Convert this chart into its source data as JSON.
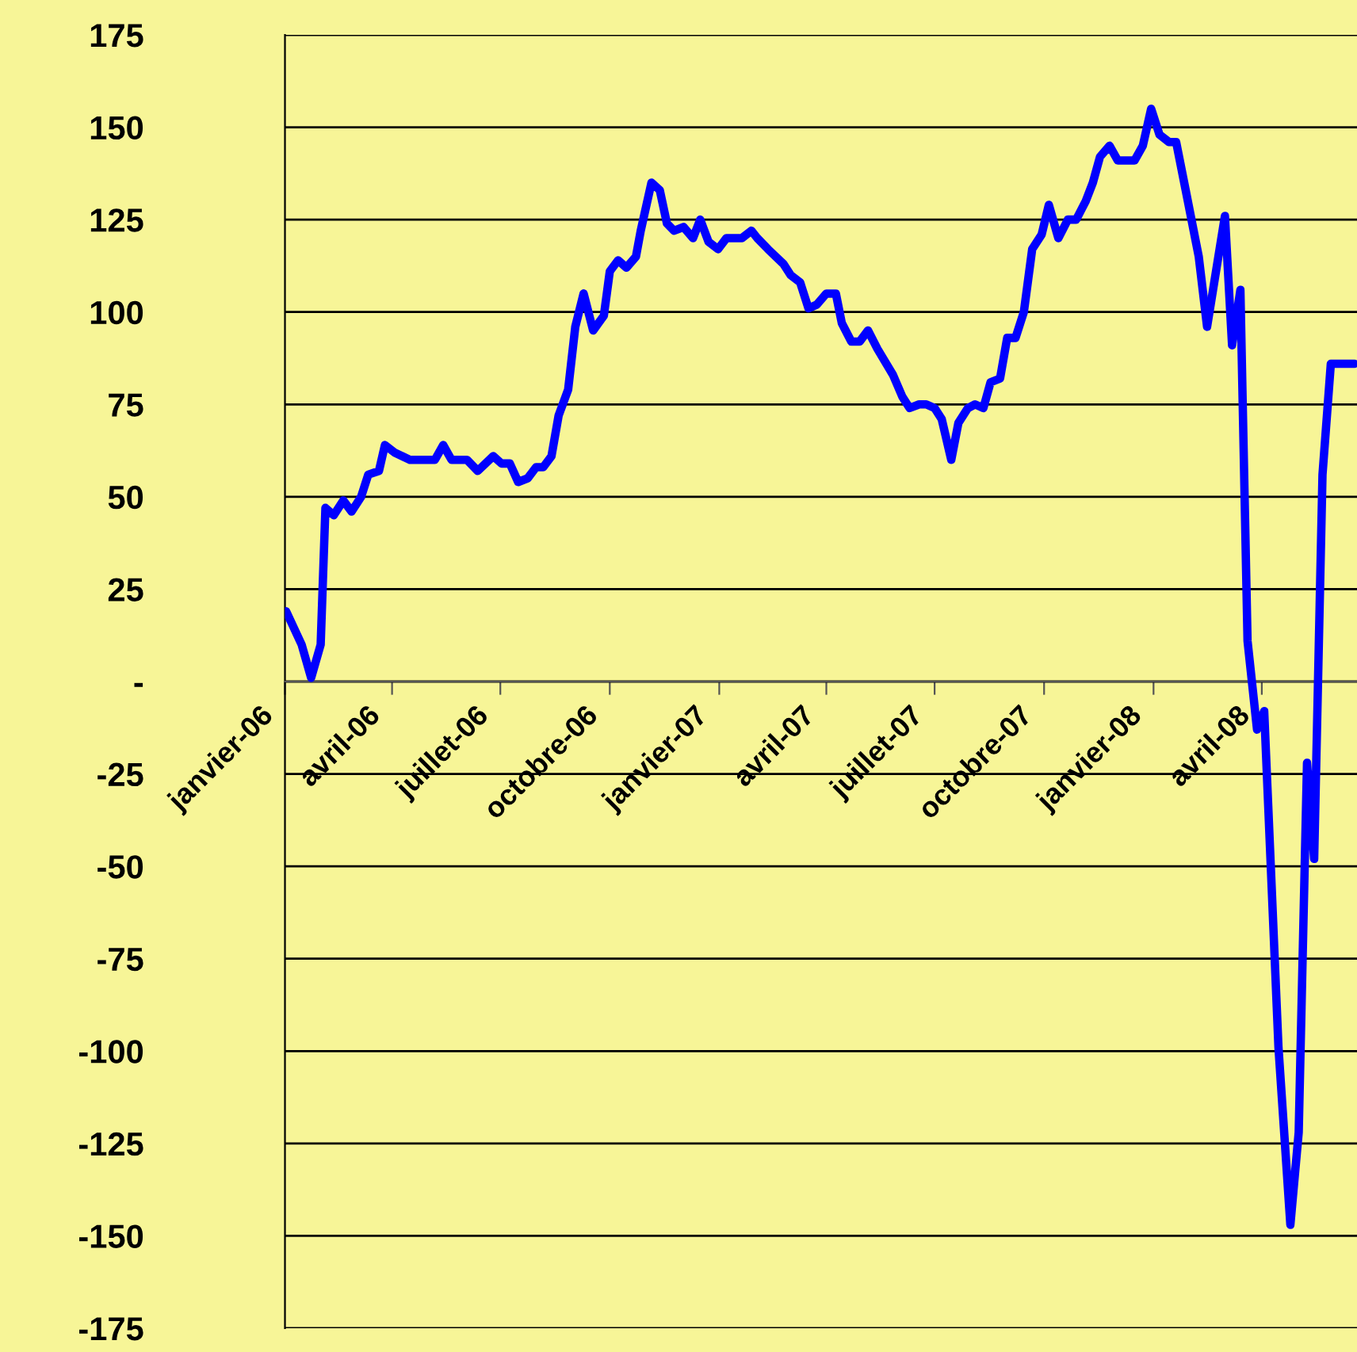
{
  "chart_data": {
    "type": "line",
    "grid": "y",
    "ylim": [
      -175,
      175
    ],
    "yticks": [
      {
        "value": -175,
        "label": "-175"
      },
      -150,
      -125,
      -100,
      -75,
      -50,
      -25,
      {
        "value": 0,
        "label": "-"
      },
      25,
      50,
      75,
      100,
      125,
      150,
      175
    ],
    "xlim": [
      "2006-01-01",
      "2008-06-20"
    ],
    "xticks": [
      {
        "value": "2006-01-01",
        "label": "janvier-06"
      },
      {
        "value": "2006-04-01",
        "label": "avril-06"
      },
      {
        "value": "2006-07-01",
        "label": "juillet-06"
      },
      {
        "value": "2006-10-01",
        "label": "octobre-06"
      },
      {
        "value": "2007-01-01",
        "label": "janvier-07"
      },
      {
        "value": "2007-04-01",
        "label": "avril-07"
      },
      {
        "value": "2007-07-01",
        "label": "juillet-07"
      },
      {
        "value": "2007-10-01",
        "label": "octobre-07"
      },
      {
        "value": "2008-01-01",
        "label": "janvier-08"
      },
      {
        "value": "2008-04-01",
        "label": "avril-08"
      }
    ],
    "x": [
      "2006-01-02",
      "2006-01-15",
      "2006-01-23",
      "2006-01-31",
      "2006-02-04",
      "2006-02-11",
      "2006-02-19",
      "2006-02-26",
      "2006-03-06",
      "2006-03-12",
      "2006-03-21",
      "2006-03-26",
      "2006-04-03",
      "2006-04-16",
      "2006-05-07",
      "2006-05-14",
      "2006-05-21",
      "2006-06-03",
      "2006-06-12",
      "2006-06-25",
      "2006-07-02",
      "2006-07-09",
      "2006-07-16",
      "2006-07-24",
      "2006-07-31",
      "2006-08-06",
      "2006-08-13",
      "2006-08-19",
      "2006-08-27",
      "2006-09-02",
      "2006-09-09",
      "2006-09-17",
      "2006-09-26",
      "2006-10-01",
      "2006-10-08",
      "2006-10-15",
      "2006-10-23",
      "2006-10-27",
      "2006-11-05",
      "2006-11-12",
      "2006-11-18",
      "2006-11-24",
      "2006-12-02",
      "2006-12-10",
      "2006-12-16",
      "2006-12-23",
      "2006-12-31",
      "2007-01-07",
      "2007-01-20",
      "2007-01-28",
      "2007-02-02",
      "2007-02-11",
      "2007-02-24",
      "2007-03-02",
      "2007-03-10",
      "2007-03-17",
      "2007-03-24",
      "2007-04-01",
      "2007-04-09",
      "2007-04-14",
      "2007-04-22",
      "2007-04-29",
      "2007-05-06",
      "2007-05-14",
      "2007-05-27",
      "2007-06-04",
      "2007-06-10",
      "2007-06-18",
      "2007-06-24",
      "2007-07-01",
      "2007-07-07",
      "2007-07-15",
      "2007-07-21",
      "2007-07-29",
      "2007-08-04",
      "2007-08-11",
      "2007-08-17",
      "2007-08-25",
      "2007-08-31",
      "2007-09-07",
      "2007-09-14",
      "2007-09-21",
      "2007-09-29",
      "2007-10-05",
      "2007-10-13",
      "2007-10-21",
      "2007-10-28",
      "2007-11-05",
      "2007-11-11",
      "2007-11-17",
      "2007-11-25",
      "2007-12-02",
      "2007-12-16",
      "2007-12-23",
      "2007-12-30",
      "2008-01-06",
      "2008-01-14",
      "2008-01-20",
      "2008-01-28",
      "2008-02-08",
      "2008-02-15",
      "2008-03-01",
      "2008-03-07",
      "2008-03-14",
      "2008-03-20",
      "2008-03-28",
      "2008-04-03",
      "2008-04-15",
      "2008-04-25",
      "2008-05-02",
      "2008-05-09",
      "2008-05-15",
      "2008-05-22",
      "2008-05-29",
      "2008-06-18"
    ],
    "series": [
      {
        "color": "#0000ff",
        "values": [
          19,
          10,
          1,
          10,
          47,
          45,
          49,
          46,
          50,
          56,
          57,
          64,
          62,
          60,
          60,
          64,
          60,
          60,
          57,
          61,
          59,
          59,
          54,
          55,
          58,
          58,
          61,
          72,
          79,
          96,
          105,
          95,
          99,
          111,
          114,
          112,
          115,
          122,
          135,
          133,
          124,
          122,
          123,
          120,
          125,
          119,
          117,
          120,
          120,
          122,
          120,
          117,
          113,
          110,
          108,
          101,
          102,
          105,
          105,
          97,
          92,
          92,
          95,
          90,
          83,
          77,
          74,
          75,
          75,
          74,
          71,
          60,
          70,
          74,
          75,
          74,
          81,
          82,
          93,
          93,
          100,
          117,
          121,
          129,
          120,
          125,
          125,
          130,
          135,
          142,
          145,
          141,
          141,
          145,
          155,
          148,
          146,
          146,
          133,
          115,
          96,
          126,
          91,
          106,
          11,
          -13,
          -8,
          -99,
          -147,
          -122,
          -22,
          -48,
          56,
          86,
          86
        ]
      }
    ]
  }
}
